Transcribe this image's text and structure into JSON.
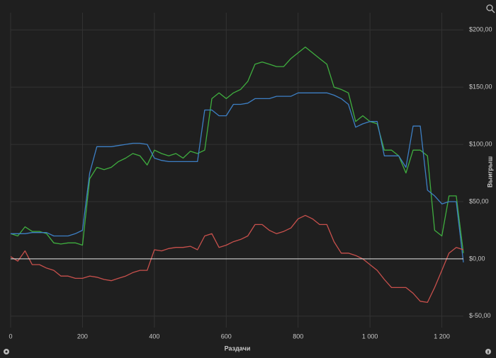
{
  "chart_data": {
    "type": "line",
    "x_label": "Раздачи",
    "y_label": "Выигрыш",
    "x": [
      0,
      20,
      40,
      60,
      80,
      100,
      120,
      140,
      160,
      180,
      200,
      220,
      240,
      260,
      280,
      300,
      320,
      340,
      360,
      380,
      400,
      420,
      440,
      460,
      480,
      500,
      520,
      540,
      560,
      580,
      600,
      620,
      640,
      660,
      680,
      700,
      720,
      740,
      760,
      780,
      800,
      820,
      840,
      860,
      880,
      900,
      920,
      940,
      960,
      980,
      1000,
      1020,
      1040,
      1060,
      1080,
      1100,
      1120,
      1140,
      1160,
      1180,
      1200,
      1220,
      1240,
      1260
    ],
    "series": [
      {
        "color": "#3fae3f",
        "values": [
          22,
          20,
          28,
          24,
          24,
          22,
          14,
          13,
          14,
          14,
          12,
          70,
          80,
          78,
          80,
          85,
          88,
          92,
          90,
          82,
          95,
          92,
          90,
          92,
          88,
          94,
          92,
          95,
          140,
          145,
          140,
          145,
          148,
          155,
          170,
          172,
          170,
          168,
          168,
          175,
          180,
          185,
          180,
          175,
          170,
          150,
          148,
          145,
          120,
          125,
          120,
          118,
          95,
          95,
          90,
          75,
          95,
          95,
          90,
          25,
          20,
          55,
          55,
          5
        ]
      },
      {
        "color": "#3d7fc4",
        "values": [
          22,
          22,
          22,
          23,
          23,
          23,
          20,
          20,
          20,
          22,
          25,
          75,
          98,
          98,
          98,
          99,
          100,
          101,
          101,
          100,
          88,
          86,
          85,
          85,
          85,
          85,
          85,
          130,
          130,
          125,
          125,
          135,
          135,
          136,
          140,
          140,
          140,
          142,
          142,
          142,
          145,
          145,
          145,
          145,
          145,
          143,
          140,
          135,
          115,
          118,
          120,
          120,
          90,
          90,
          90,
          80,
          116,
          116,
          60,
          55,
          48,
          50,
          50,
          -3
        ]
      },
      {
        "color": "#c8504c",
        "values": [
          2,
          -2,
          7,
          -5,
          -5,
          -8,
          -10,
          -15,
          -15,
          -17,
          -17,
          -15,
          -16,
          -18,
          -19,
          -17,
          -15,
          -12,
          -10,
          -10,
          8,
          7,
          9,
          10,
          10,
          11,
          8,
          20,
          22,
          10,
          12,
          15,
          17,
          20,
          30,
          30,
          25,
          22,
          24,
          27,
          35,
          38,
          35,
          30,
          30,
          15,
          5,
          5,
          3,
          0,
          -5,
          -10,
          -18,
          -25,
          -25,
          -25,
          -30,
          -37,
          -38,
          -25,
          -10,
          5,
          10,
          8
        ]
      }
    ],
    "xlim": [
      0,
      1260
    ],
    "ylim": [
      -60,
      215
    ],
    "xticks": [
      0,
      200,
      400,
      600,
      800,
      {
        "value": 1000,
        "label": "1 000"
      },
      {
        "value": 1200,
        "label": "1 200"
      }
    ],
    "yticks": [
      {
        "value": -50,
        "label": "$-50,00"
      },
      {
        "value": 0,
        "label": "$0,00"
      },
      {
        "value": 50,
        "label": "$50,00"
      },
      {
        "value": 100,
        "label": "$100,00"
      },
      {
        "value": 150,
        "label": "$150,00"
      },
      {
        "value": 200,
        "label": "$200,00"
      }
    ],
    "grid": true
  }
}
